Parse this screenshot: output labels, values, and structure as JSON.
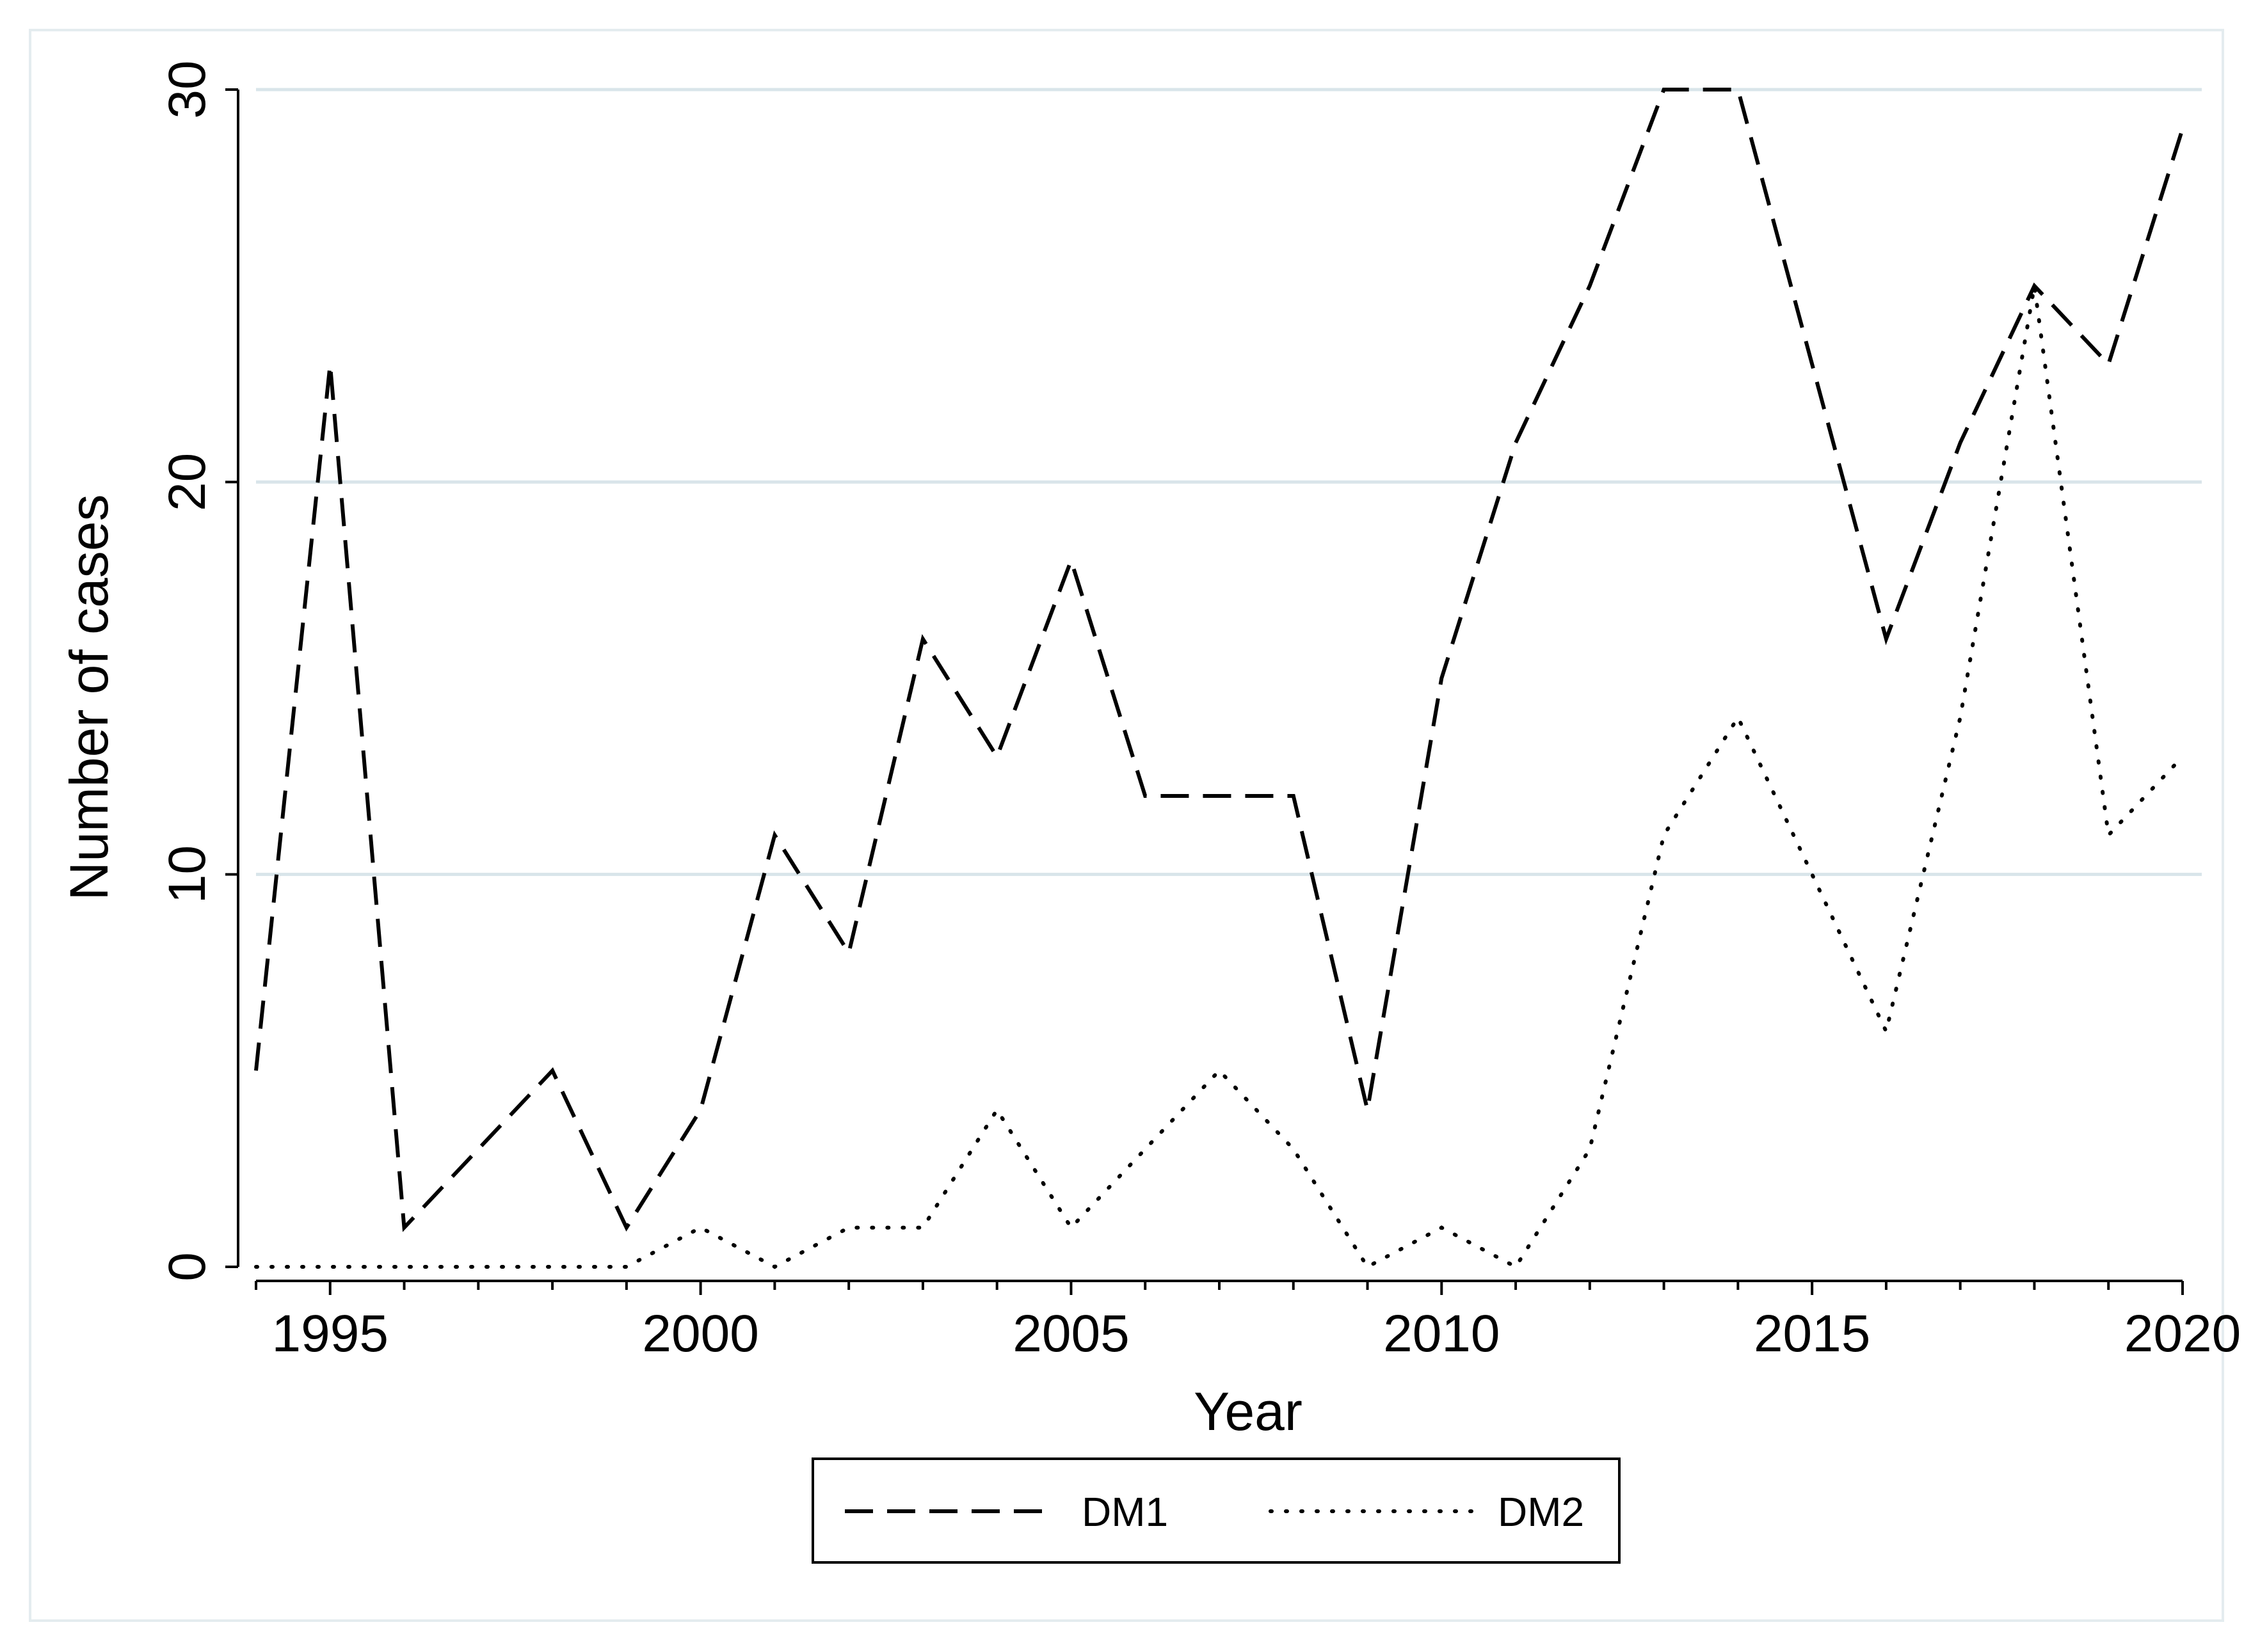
{
  "chart_data": {
    "type": "line",
    "xlabel": "Year",
    "ylabel": "Number of cases",
    "xlim": [
      1994,
      2020
    ],
    "ylim": [
      0,
      30
    ],
    "x_ticks": [
      1995,
      2000,
      2005,
      2010,
      2015,
      2020
    ],
    "y_ticks": [
      0,
      10,
      20,
      30
    ],
    "grid": "horizontal",
    "legend_position": "bottom",
    "x": [
      1994,
      1995,
      1996,
      1997,
      1998,
      1999,
      2000,
      2001,
      2002,
      2003,
      2004,
      2005,
      2006,
      2007,
      2008,
      2009,
      2010,
      2011,
      2012,
      2013,
      2014,
      2015,
      2016,
      2017,
      2018,
      2019,
      2020
    ],
    "series": [
      {
        "name": "DM1",
        "style": "dashed",
        "color": "#000000",
        "values": [
          5,
          23,
          1,
          3,
          5,
          1,
          4,
          11,
          8,
          16,
          13,
          18,
          12,
          12,
          12,
          4,
          15,
          21,
          25,
          30,
          30,
          23,
          16,
          21,
          25,
          23,
          29
        ]
      },
      {
        "name": "DM2",
        "style": "dotted",
        "color": "#000000",
        "values": [
          0,
          0,
          0,
          0,
          0,
          0,
          1,
          0,
          1,
          1,
          4,
          1,
          3,
          5,
          3,
          0,
          1,
          0,
          3,
          11,
          14,
          10,
          6,
          14,
          25,
          11,
          13
        ]
      }
    ],
    "colors": {
      "gridline": "#d9e5ea",
      "frame": "#e4ecef"
    }
  }
}
